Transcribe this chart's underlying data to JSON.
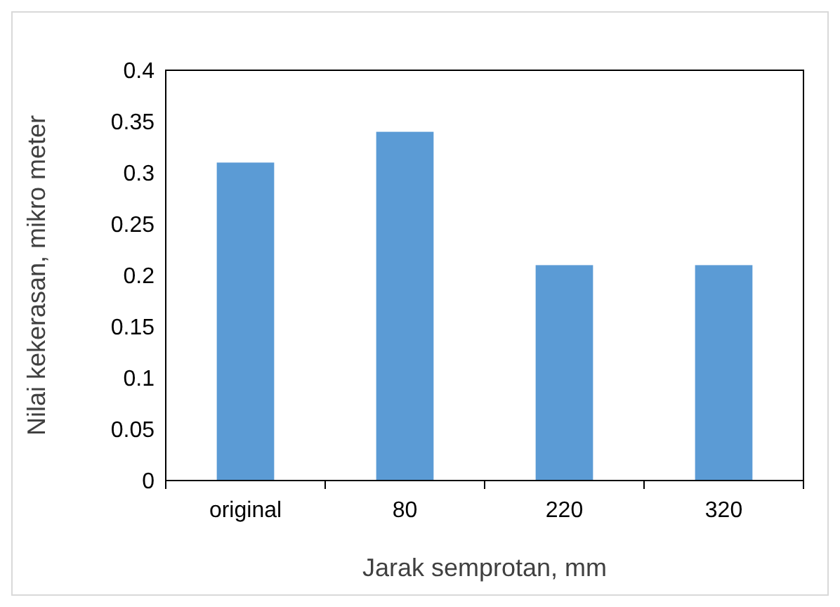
{
  "chart_data": {
    "type": "bar",
    "xlabel": "Jarak semprotan, mm",
    "ylabel": "Nilai kekerasan, mikro meter",
    "categories": [
      "original",
      "80",
      "220",
      "320"
    ],
    "series": [
      {
        "color": "#5b9bd5",
        "values": [
          0.31,
          0.34,
          0.21,
          0.21
        ]
      }
    ],
    "ylim": [
      0,
      0.4
    ],
    "yticks": [
      0,
      0.05,
      0.1,
      0.15,
      0.2,
      0.25,
      0.3,
      0.35,
      0.4
    ],
    "grid": false
  }
}
